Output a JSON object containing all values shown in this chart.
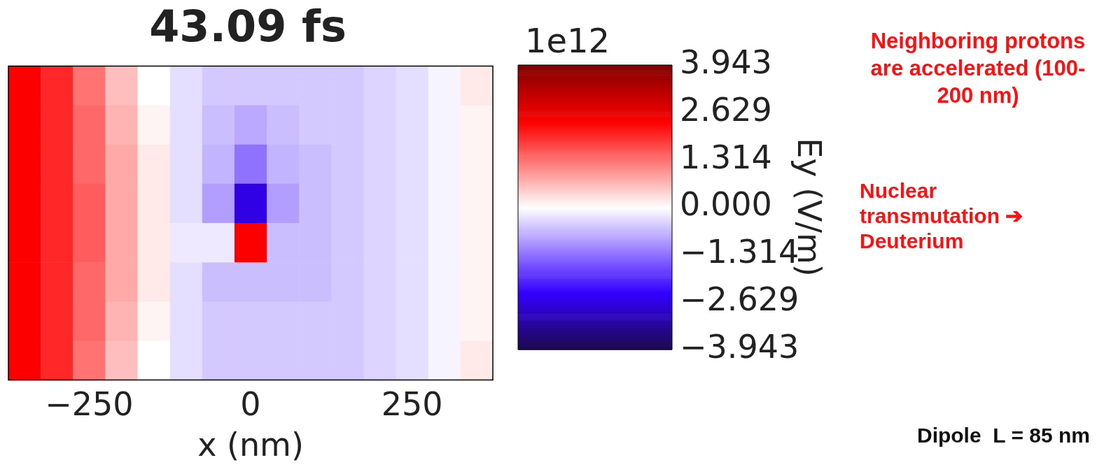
{
  "chart_data": {
    "type": "heatmap",
    "title": "43.09 fs",
    "xlabel": "x (nm)",
    "clabel": "Ey (V/m)",
    "categories": [
      null,
      null,
      "−250",
      null,
      null,
      null,
      null,
      "0",
      null,
      null,
      null,
      null,
      "250",
      null,
      null
    ],
    "y_categories": [
      null,
      null,
      null,
      null,
      null,
      null,
      null,
      null
    ],
    "cells": [
      [
        2.4,
        2.0,
        1.3,
        0.6,
        0.0,
        -0.3,
        -0.5,
        -0.5,
        -0.5,
        -0.5,
        -0.5,
        -0.4,
        -0.3,
        -0.1,
        0.2
      ],
      [
        2.4,
        2.0,
        1.4,
        0.7,
        0.1,
        -0.3,
        -0.6,
        -0.8,
        -0.6,
        -0.5,
        -0.5,
        -0.4,
        -0.3,
        -0.1,
        0.1
      ],
      [
        2.4,
        2.0,
        1.4,
        0.8,
        0.2,
        -0.3,
        -0.7,
        -1.3,
        -0.7,
        -0.6,
        -0.5,
        -0.4,
        -0.3,
        -0.1,
        0.1
      ],
      [
        2.4,
        2.0,
        1.5,
        0.8,
        0.2,
        -0.3,
        -0.9,
        -2.6,
        -0.9,
        -0.6,
        -0.5,
        -0.4,
        -0.3,
        -0.1,
        0.1
      ],
      [
        2.4,
        2.0,
        1.5,
        0.8,
        0.2,
        -0.2,
        -0.2,
        2.4,
        -0.6,
        -0.6,
        -0.5,
        -0.4,
        -0.3,
        -0.1,
        0.1
      ],
      [
        2.4,
        2.0,
        1.4,
        0.8,
        0.2,
        -0.3,
        -0.6,
        -0.6,
        -0.6,
        -0.6,
        -0.5,
        -0.4,
        -0.3,
        -0.1,
        0.1
      ],
      [
        2.4,
        2.0,
        1.4,
        0.7,
        0.1,
        -0.3,
        -0.5,
        -0.5,
        -0.5,
        -0.5,
        -0.5,
        -0.4,
        -0.3,
        -0.1,
        0.1
      ],
      [
        2.4,
        2.0,
        1.3,
        0.6,
        0.0,
        -0.3,
        -0.5,
        -0.5,
        -0.5,
        -0.5,
        -0.5,
        -0.4,
        -0.3,
        -0.1,
        0.2
      ]
    ],
    "tick_labels": "x",
    "clim": [
      -3.943,
      3.943
    ],
    "cticks": [
      {
        "value": -3.943,
        "label": "−3.943"
      },
      {
        "value": -2.629,
        "label": "−2.629"
      },
      {
        "value": -1.314,
        "label": "−1.314"
      },
      {
        "value": 0,
        "label": "0.000"
      },
      {
        "value": 1.314,
        "label": "1.314"
      },
      {
        "value": 2.629,
        "label": "2.629"
      },
      {
        "value": 3.943,
        "label": "3.943"
      }
    ],
    "annotations": [
      "1e12",
      "Neighboring protons are accelerated (100-200 nm)",
      "Nuclear transmutation ➔ Deuterium",
      "Dipole  L = 85 nm"
    ]
  }
}
